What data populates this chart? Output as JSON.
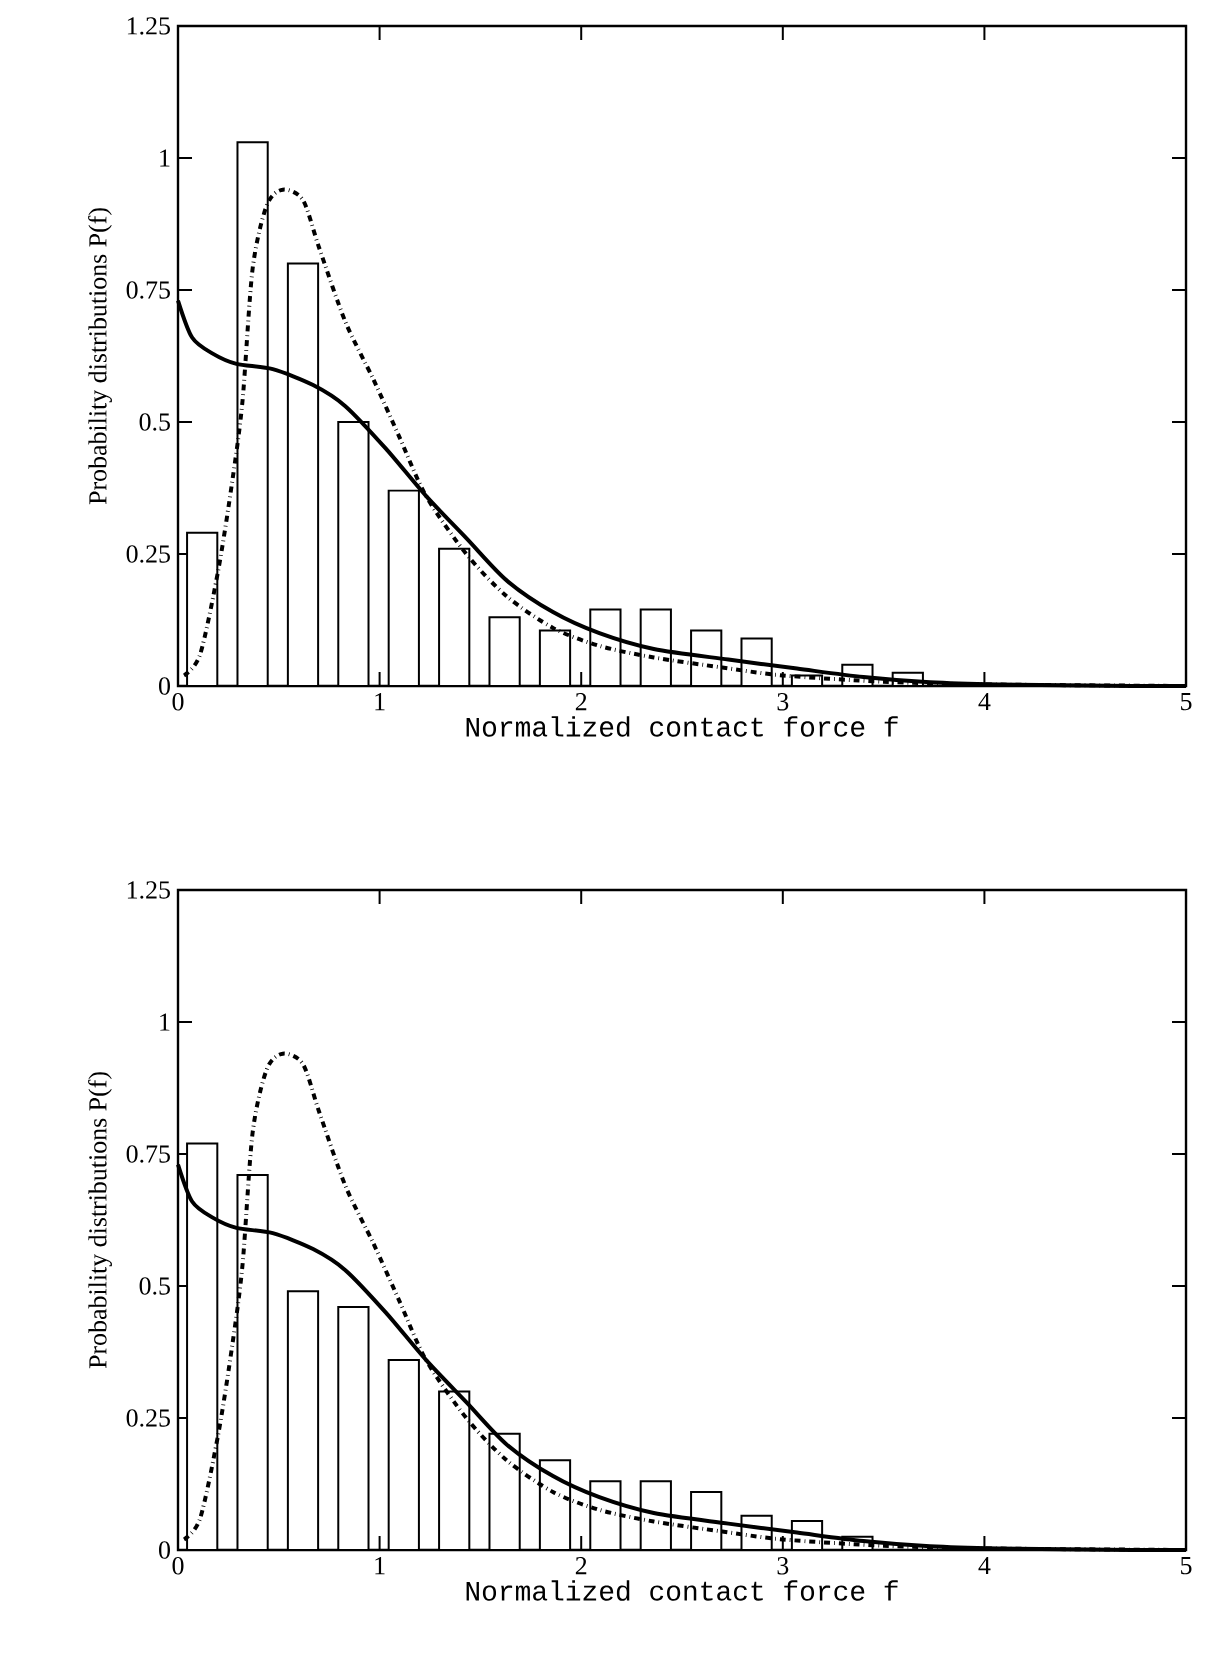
{
  "chart_data": [
    {
      "type": "bar",
      "xlabel": "Normalized contact force f",
      "ylabel": "Probability distributions P(f)",
      "xlim": [
        0,
        5
      ],
      "ylim": [
        0,
        1.25
      ],
      "xticks": [
        0,
        1,
        2,
        3,
        4,
        5
      ],
      "yticks": [
        0,
        0.25,
        0.5,
        0.75,
        1,
        1.25
      ],
      "x": [
        0.12,
        0.37,
        0.62,
        0.87,
        1.12,
        1.37,
        1.62,
        1.87,
        2.12,
        2.37,
        2.62,
        2.87,
        3.12,
        3.37,
        3.62
      ],
      "series": [
        {
          "color": "#ffffff",
          "values": [
            0.29,
            1.03,
            0.8,
            0.5,
            0.37,
            0.26,
            0.13,
            0.105,
            0.145,
            0.145,
            0.105,
            0.09,
            0.02,
            0.04,
            0.025
          ]
        },
        {
          "type": "line",
          "color": "#000000",
          "line_style": "solid",
          "x": [
            0,
            0.07,
            0.17,
            0.29,
            0.47,
            0.67,
            0.83,
            1.03,
            1.23,
            1.43,
            1.63,
            1.86,
            2.09,
            2.36,
            2.73,
            3.07,
            3.4,
            3.73,
            4.07,
            4.73,
            5
          ],
          "values": [
            0.73,
            0.66,
            0.63,
            0.61,
            0.6,
            0.57,
            0.53,
            0.45,
            0.36,
            0.28,
            0.2,
            0.14,
            0.1,
            0.07,
            0.05,
            0.033,
            0.017,
            0.007,
            0.003,
            0,
            0
          ]
        },
        {
          "type": "line",
          "color": "#000000",
          "line_style": "dashed",
          "x": [
            0.03,
            0.11,
            0.2,
            0.27,
            0.32,
            0.37,
            0.44,
            0.52,
            0.62,
            0.7,
            0.83,
            0.97,
            1.1,
            1.23,
            1.43,
            1.63,
            1.86,
            2.09,
            2.36,
            2.7,
            3.0,
            3.5,
            4.0,
            5.0
          ],
          "values": [
            0.02,
            0.06,
            0.22,
            0.39,
            0.54,
            0.79,
            0.91,
            0.94,
            0.92,
            0.83,
            0.69,
            0.58,
            0.47,
            0.36,
            0.25,
            0.17,
            0.11,
            0.076,
            0.054,
            0.035,
            0.02,
            0.008,
            0.003,
            0
          ]
        }
      ]
    },
    {
      "type": "bar",
      "xlabel": "Normalized contact force f",
      "ylabel": "Probability distributions P(f)",
      "xlim": [
        0,
        5
      ],
      "ylim": [
        0,
        1.25
      ],
      "xticks": [
        0,
        1,
        2,
        3,
        4,
        5
      ],
      "yticks": [
        0,
        0.25,
        0.5,
        0.75,
        1,
        1.25
      ],
      "x": [
        0.12,
        0.37,
        0.62,
        0.87,
        1.12,
        1.37,
        1.62,
        1.87,
        2.12,
        2.37,
        2.62,
        2.87,
        3.12,
        3.37
      ],
      "series": [
        {
          "color": "#ffffff",
          "values": [
            0.77,
            0.71,
            0.49,
            0.46,
            0.36,
            0.3,
            0.22,
            0.17,
            0.13,
            0.13,
            0.11,
            0.065,
            0.055,
            0.025
          ]
        },
        {
          "type": "line",
          "color": "#000000",
          "line_style": "solid",
          "x": [
            0,
            0.07,
            0.17,
            0.29,
            0.47,
            0.67,
            0.83,
            1.03,
            1.23,
            1.43,
            1.63,
            1.86,
            2.09,
            2.36,
            2.73,
            3.07,
            3.4,
            3.73,
            4.07,
            4.73,
            5
          ],
          "values": [
            0.73,
            0.66,
            0.63,
            0.61,
            0.6,
            0.57,
            0.53,
            0.45,
            0.36,
            0.28,
            0.2,
            0.14,
            0.1,
            0.07,
            0.05,
            0.033,
            0.017,
            0.007,
            0.003,
            0,
            0
          ]
        },
        {
          "type": "line",
          "color": "#000000",
          "line_style": "dashed",
          "x": [
            0.03,
            0.11,
            0.2,
            0.27,
            0.32,
            0.37,
            0.44,
            0.52,
            0.62,
            0.7,
            0.83,
            0.97,
            1.1,
            1.23,
            1.43,
            1.63,
            1.86,
            2.09,
            2.36,
            2.7,
            3.0,
            3.5,
            4.0,
            5.0
          ],
          "values": [
            0.02,
            0.06,
            0.22,
            0.39,
            0.54,
            0.79,
            0.91,
            0.94,
            0.92,
            0.83,
            0.69,
            0.58,
            0.47,
            0.36,
            0.25,
            0.17,
            0.11,
            0.076,
            0.054,
            0.035,
            0.02,
            0.008,
            0.003,
            0
          ]
        }
      ]
    }
  ]
}
